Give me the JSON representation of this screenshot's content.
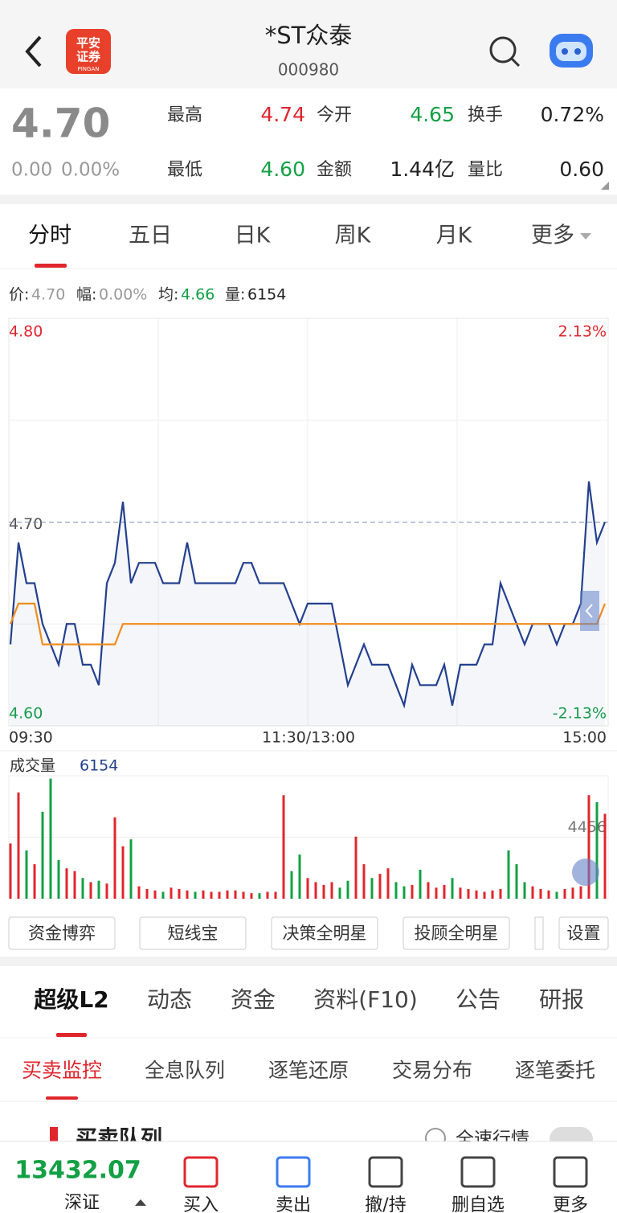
{
  "header": {
    "logo": "平安\n证券",
    "logo_sub": "PINGAN",
    "title": "*ST众泰",
    "code": "000980"
  },
  "quote": {
    "price": "4.70",
    "change": "0.00",
    "change_pct": "0.00%",
    "fields": [
      {
        "label": "最高",
        "value": "4.74"
      },
      {
        "label": "今开",
        "value": "4.65"
      },
      {
        "label": "换手",
        "value": "0.72%"
      },
      {
        "label": "最低",
        "value": "4.60"
      },
      {
        "label": "金额",
        "value": "1.44亿"
      },
      {
        "label": "量比",
        "value": "0.60"
      }
    ]
  },
  "period_tabs": [
    "分时",
    "五日",
    "日K",
    "周K",
    "月K",
    "更多"
  ],
  "info": [
    {
      "label": "价:",
      "value": "4.70"
    },
    {
      "label": "幅:",
      "value": "0.00%"
    },
    {
      "label": "均:",
      "value": "4.66"
    },
    {
      "label": "量:",
      "value": "6154"
    }
  ],
  "chart_data": [
    {
      "type": "line",
      "ylim": [
        4.6,
        4.8
      ],
      "yticks": [
        {
          "value": 4.8,
          "label": "4.80"
        },
        {
          "value": 4.7,
          "label": "4.70"
        },
        {
          "value": 4.6,
          "label": "4.60"
        }
      ],
      "y2lim": [
        -2.13,
        2.13
      ],
      "y2ticks": [
        {
          "value": 2.13,
          "label": "2.13%"
        },
        {
          "value": -2.13,
          "label": "-2.13%"
        }
      ],
      "x_labels": [
        "09:30",
        "11:30/13:00",
        "15:00"
      ],
      "series": [
        {
          "color": "#23408e",
          "values": [
            4.64,
            4.69,
            4.67,
            4.67,
            4.65,
            4.64,
            4.63,
            4.65,
            4.65,
            4.63,
            4.63,
            4.62,
            4.67,
            4.68,
            4.71,
            4.67,
            4.68,
            4.68,
            4.68,
            4.67,
            4.67,
            4.67,
            4.69,
            4.67,
            4.67,
            4.67,
            4.67,
            4.67,
            4.67,
            4.68,
            4.68,
            4.67,
            4.67,
            4.67,
            4.67,
            4.66,
            4.65,
            4.66,
            4.66,
            4.66,
            4.66,
            4.64,
            4.62,
            4.63,
            4.64,
            4.63,
            4.63,
            4.63,
            4.62,
            4.61,
            4.63,
            4.62,
            4.62,
            4.62,
            4.63,
            4.61,
            4.63,
            4.63,
            4.63,
            4.64,
            4.64,
            4.67,
            4.66,
            4.65,
            4.64,
            4.65,
            4.65,
            4.65,
            4.64,
            4.65,
            4.65,
            4.66,
            4.72,
            4.69,
            4.7
          ]
        },
        {
          "color": "#f08c1e",
          "values": [
            4.65,
            4.66,
            4.66,
            4.66,
            4.64,
            4.64,
            4.64,
            4.64,
            4.64,
            4.64,
            4.64,
            4.64,
            4.64,
            4.64,
            4.65,
            4.65,
            4.65,
            4.65,
            4.65,
            4.65,
            4.65,
            4.65,
            4.65,
            4.65,
            4.65,
            4.65,
            4.65,
            4.65,
            4.65,
            4.65,
            4.65,
            4.65,
            4.65,
            4.65,
            4.65,
            4.65,
            4.65,
            4.65,
            4.65,
            4.65,
            4.65,
            4.65,
            4.65,
            4.65,
            4.65,
            4.65,
            4.65,
            4.65,
            4.65,
            4.65,
            4.65,
            4.65,
            4.65,
            4.65,
            4.65,
            4.65,
            4.65,
            4.65,
            4.65,
            4.65,
            4.65,
            4.65,
            4.65,
            4.65,
            4.65,
            4.65,
            4.65,
            4.65,
            4.65,
            4.65,
            4.65,
            4.65,
            4.65,
            4.65,
            4.66
          ]
        }
      ]
    },
    {
      "type": "bar",
      "title": "成交量",
      "current": "6154",
      "ylim": [
        0,
        8912
      ],
      "yticks": [
        4456
      ],
      "up_color": "#e0262d",
      "down_color": "#13a044",
      "values": [
        4000,
        7700,
        3500,
        2500,
        6300,
        8700,
        2800,
        2200,
        2000,
        1500,
        1200,
        1300,
        1100,
        5900,
        3800,
        4300,
        900,
        700,
        600,
        500,
        800,
        700,
        600,
        500,
        600,
        500,
        500,
        600,
        600,
        500,
        400,
        400,
        500,
        500,
        7500,
        2000,
        3200,
        1500,
        1200,
        1000,
        1200,
        800,
        1300,
        4500,
        2500,
        1500,
        1800,
        2200,
        1200,
        900,
        1000,
        2100,
        1200,
        800,
        1000,
        1500,
        800,
        700,
        600,
        500,
        600,
        700,
        3500,
        2500,
        1200,
        900,
        700,
        600,
        500,
        700,
        800,
        900,
        7500,
        7000,
        6154
      ]
    }
  ],
  "tool_buttons": [
    "资金博弈",
    "短线宝",
    "决策全明星",
    "投顾全明星",
    "设置"
  ],
  "section_tabs": [
    "超级L2",
    "动态",
    "资金",
    "资料(F10)",
    "公告",
    "研报"
  ],
  "sub_tabs": [
    "买卖监控",
    "全息队列",
    "逐笔还原",
    "交易分布",
    "逐笔委托"
  ],
  "queue": {
    "title": "买卖队列",
    "toggle_label": "全速行情"
  },
  "bottom": {
    "index_value": "13432.07",
    "index_name": "深证",
    "actions": [
      "买入",
      "卖出",
      "撤/持",
      "删自选",
      "更多"
    ]
  }
}
